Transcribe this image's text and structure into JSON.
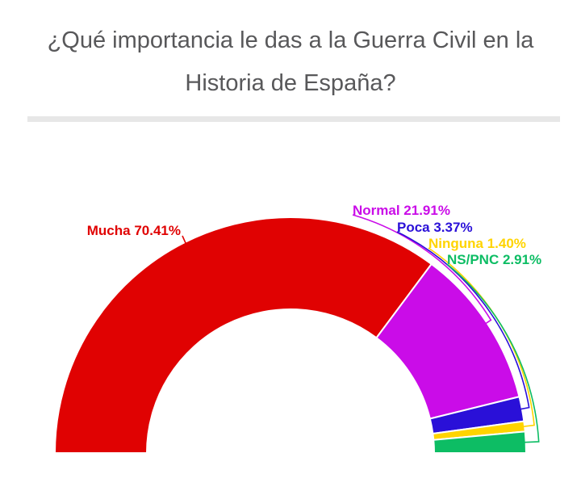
{
  "header": {
    "title": "¿Qué importancia le das a la Guerra Civil en la\nHistoria de España?",
    "title_color": "#58585a",
    "divider_color": "#e7e7e7"
  },
  "chart_data": {
    "type": "pie",
    "variant": "half-donut",
    "title": "¿Qué importancia le das a la Guerra Civil en la Historia de España?",
    "unit": "%",
    "start_angle_deg": 180,
    "end_angle_deg": 0,
    "inner_radius_ratio": 0.61,
    "slice_border_color": "#ffffff",
    "legend_position": "none",
    "labels_on_chart": true,
    "series": [
      {
        "label": "Mucha",
        "value": 70.41,
        "display": "Mucha 70.41%",
        "color": "#e00202"
      },
      {
        "label": "Normal",
        "value": 21.91,
        "display": "Normal 21.91%",
        "color": "#ca0ce8"
      },
      {
        "label": "Poca",
        "value": 3.37,
        "display": "Poca 3.37%",
        "color": "#2a10d8"
      },
      {
        "label": "Ninguna",
        "value": 1.4,
        "display": "Ninguna 1.40%",
        "color": "#ffd400"
      },
      {
        "label": "NS/PNC",
        "value": 2.91,
        "display": "NS/PNC 2.91%",
        "color": "#0dbd64"
      }
    ]
  }
}
